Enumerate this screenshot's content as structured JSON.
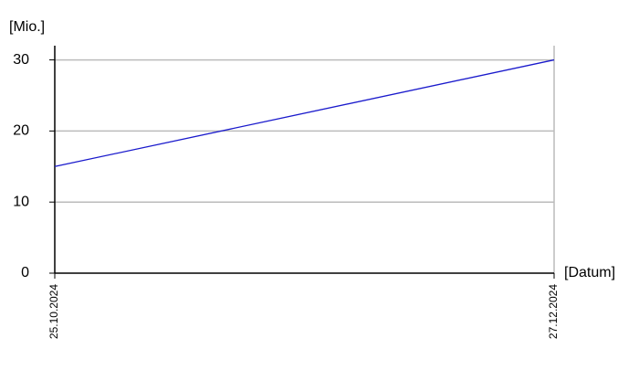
{
  "chart_data": {
    "type": "line",
    "y_label": "[Mio.]",
    "x_label": "[Datum]",
    "categories": [
      "25.10.2024",
      "27.12.2024"
    ],
    "series": [
      {
        "values": [
          15,
          30
        ],
        "color": "#1a1acc"
      }
    ],
    "ylim": [
      0,
      32
    ],
    "yticks": [
      0,
      10,
      20,
      30
    ],
    "grid": true
  }
}
